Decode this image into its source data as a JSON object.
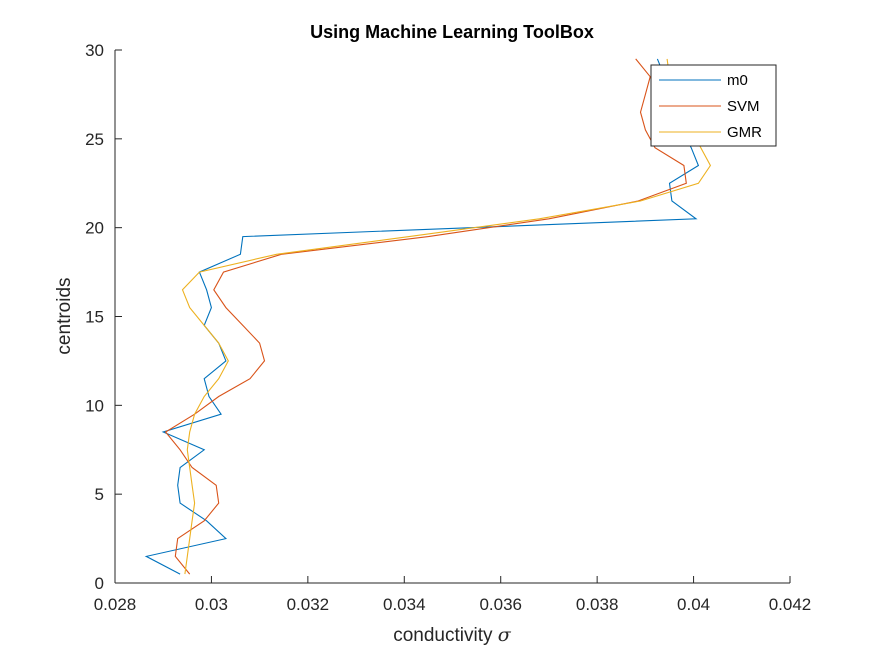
{
  "chart_data": {
    "type": "line",
    "title": "Using Machine Learning ToolBox",
    "xlabel": "conductivity",
    "xlabel_symbol": "σ",
    "ylabel": "centroids",
    "xlim": [
      0.028,
      0.042
    ],
    "ylim": [
      0,
      30
    ],
    "x_ticks": [
      "0.028",
      "0.03",
      "0.032",
      "0.034",
      "0.036",
      "0.038",
      "0.04",
      "0.042"
    ],
    "y_ticks": [
      "0",
      "5",
      "10",
      "15",
      "20",
      "25",
      "30"
    ],
    "legend_position": "top-right",
    "grid": false,
    "y": [
      0.5,
      1.5,
      2.5,
      3.5,
      4.5,
      5.5,
      6.5,
      7.5,
      8.5,
      9.5,
      10.5,
      11.5,
      12.5,
      13.5,
      14.5,
      15.5,
      16.5,
      17.5,
      18.5,
      19.5,
      20.5,
      21.5,
      22.5,
      23.5,
      24.5,
      25.5,
      26.5,
      27.5,
      28.5,
      29.5
    ],
    "series": [
      {
        "name": "m0",
        "color": "#0072BD",
        "x": [
          0.02935,
          0.02865,
          0.0303,
          0.0299,
          0.02935,
          0.0293,
          0.02935,
          0.02985,
          0.029,
          0.0302,
          0.02995,
          0.02985,
          0.0303,
          0.03015,
          0.02985,
          0.03,
          0.0299,
          0.02975,
          0.0306,
          0.03065,
          0.04005,
          0.03955,
          0.0395,
          0.0401,
          0.03995,
          0.03975,
          0.0396,
          0.0395,
          0.0394,
          0.03925
        ]
      },
      {
        "name": "SVM",
        "color": "#D95319",
        "x": [
          0.02955,
          0.02925,
          0.0293,
          0.02985,
          0.03015,
          0.0301,
          0.0296,
          0.02935,
          0.02905,
          0.02965,
          0.03015,
          0.0308,
          0.0311,
          0.031,
          0.03065,
          0.0303,
          0.03005,
          0.03025,
          0.03145,
          0.0345,
          0.037,
          0.03885,
          0.03985,
          0.0398,
          0.0392,
          0.039,
          0.0389,
          0.039,
          0.0391,
          0.0388
        ]
      },
      {
        "name": "GMR",
        "color": "#EDB120",
        "x": [
          0.02945,
          0.0295,
          0.02955,
          0.0296,
          0.02965,
          0.0296,
          0.02955,
          0.0295,
          0.02955,
          0.02965,
          0.02985,
          0.03015,
          0.03035,
          0.03015,
          0.02985,
          0.02955,
          0.0294,
          0.02975,
          0.03135,
          0.0341,
          0.0368,
          0.0389,
          0.0401,
          0.04035,
          0.04015,
          0.03995,
          0.03975,
          0.03955,
          0.0395,
          0.03945
        ]
      }
    ]
  }
}
